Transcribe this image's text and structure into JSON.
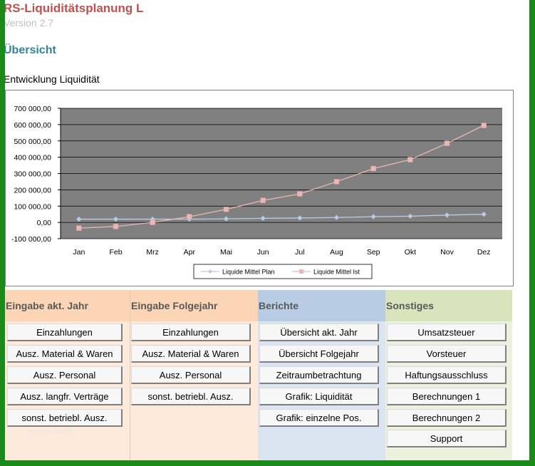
{
  "header": {
    "app_title": "RS-Liquiditätsplanung L",
    "version": "Version 2.7",
    "section_title": "Übersicht",
    "chart_heading": "Entwicklung Liquidität"
  },
  "chart_data": {
    "type": "line",
    "categories": [
      "Jan",
      "Feb",
      "Mrz",
      "Apr",
      "Mai",
      "Jun",
      "Jul",
      "Aug",
      "Sep",
      "Okt",
      "Nov",
      "Dez"
    ],
    "series": [
      {
        "name": "Liquide Mittel Plan",
        "color": "#b8cce4",
        "marker": "diamond",
        "values": [
          20000,
          20000,
          20000,
          20000,
          22000,
          25000,
          27000,
          30000,
          35000,
          38000,
          45000,
          50000
        ]
      },
      {
        "name": "Liquide Mittel Ist",
        "color": "#e6b9b8",
        "marker": "square",
        "values": [
          -35000,
          -25000,
          0,
          35000,
          80000,
          135000,
          175000,
          250000,
          330000,
          385000,
          485000,
          595000
        ]
      }
    ],
    "ylim": [
      -100000,
      700000
    ],
    "yticks": [
      "700 000,00",
      "600 000,00",
      "500 000,00",
      "400 000,00",
      "300 000,00",
      "200 000,00",
      "100 000,00",
      "0,00",
      "-100 000,00"
    ],
    "ytick_values": [
      700000,
      600000,
      500000,
      400000,
      300000,
      200000,
      100000,
      0,
      -100000
    ],
    "grid": true,
    "plot_background": "#808080",
    "legend_position": "bottom"
  },
  "panels": [
    {
      "title": "Eingabe akt. Jahr",
      "color": "#fbd5b5",
      "body_color": "#fdeada",
      "buttons": [
        "Einzahlungen",
        "Ausz. Material & Waren",
        "Ausz. Personal",
        "Ausz. langfr. Verträge",
        "sonst. betriebl. Ausz."
      ]
    },
    {
      "title": "Eingabe Folgejahr",
      "color": "#fbd5b5",
      "body_color": "#fdeada",
      "buttons": [
        "Einzahlungen",
        "Ausz. Material & Waren",
        "Ausz. Personal",
        "sonst. betriebl. Ausz."
      ]
    },
    {
      "title": "Berichte",
      "color": "#b8cce4",
      "body_color": "#dbe5f1",
      "buttons": [
        "Übersicht akt. Jahr",
        "Übersicht Folgejahr",
        "Zeitraumbetrachtung",
        "Grafik: Liquidität",
        "Grafik: einzelne Pos."
      ]
    },
    {
      "title": "Sonstiges",
      "color": "#d7e4bc",
      "body_color": "#ebf1dd",
      "buttons": [
        "Umsatzsteuer",
        "Vorsteuer",
        "Haftungsausschluss",
        "Berechnungen 1",
        "Berechnungen 2",
        "Support"
      ]
    }
  ],
  "watermark": "Vorlage Archiv"
}
